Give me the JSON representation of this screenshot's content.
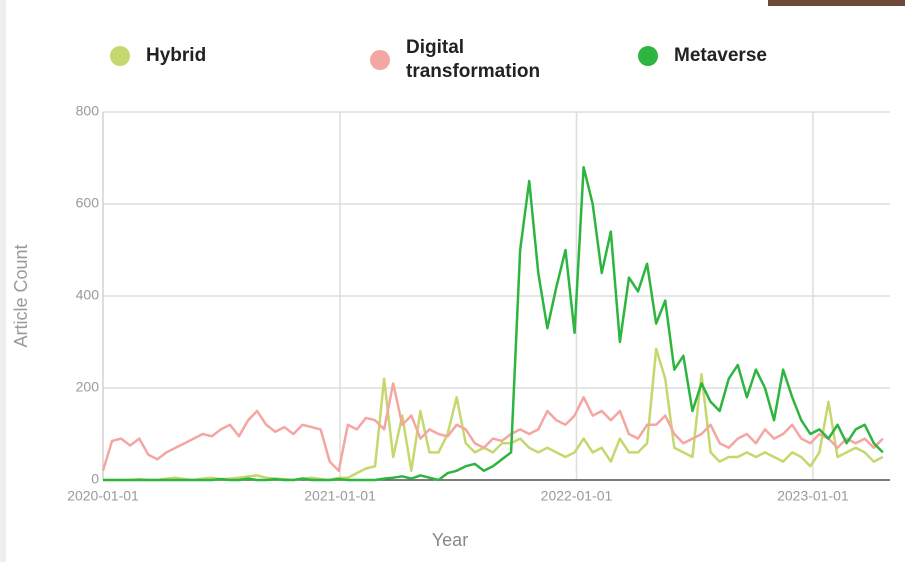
{
  "chart_data": {
    "type": "line",
    "x_label": "Year",
    "y_label": "Article Count",
    "x": [
      "2020-01-01",
      "2020-01-15",
      "2020-01-29",
      "2020-02-12",
      "2020-02-26",
      "2020-03-11",
      "2020-03-25",
      "2020-04-08",
      "2020-04-22",
      "2020-05-06",
      "2020-05-20",
      "2020-06-03",
      "2020-06-17",
      "2020-07-01",
      "2020-07-15",
      "2020-07-29",
      "2020-08-12",
      "2020-08-26",
      "2020-09-09",
      "2020-09-23",
      "2020-10-07",
      "2020-10-21",
      "2020-11-04",
      "2020-11-18",
      "2020-12-02",
      "2020-12-16",
      "2020-12-30",
      "2021-01-13",
      "2021-01-27",
      "2021-02-10",
      "2021-02-24",
      "2021-03-10",
      "2021-03-24",
      "2021-04-07",
      "2021-04-21",
      "2021-05-05",
      "2021-05-19",
      "2021-06-02",
      "2021-06-16",
      "2021-06-30",
      "2021-07-14",
      "2021-07-28",
      "2021-08-11",
      "2021-08-25",
      "2021-09-08",
      "2021-09-22",
      "2021-10-06",
      "2021-10-20",
      "2021-11-03",
      "2021-11-17",
      "2021-12-01",
      "2021-12-15",
      "2021-12-29",
      "2022-01-12",
      "2022-01-26",
      "2022-02-09",
      "2022-02-23",
      "2022-03-09",
      "2022-03-23",
      "2022-04-06",
      "2022-04-20",
      "2022-05-04",
      "2022-05-18",
      "2022-06-01",
      "2022-06-15",
      "2022-06-29",
      "2022-07-13",
      "2022-07-27",
      "2022-08-10",
      "2022-08-24",
      "2022-09-07",
      "2022-09-21",
      "2022-10-05",
      "2022-10-19",
      "2022-11-02",
      "2022-11-16",
      "2022-11-30",
      "2022-12-14",
      "2022-12-28",
      "2023-01-11",
      "2023-01-25",
      "2023-02-08",
      "2023-02-22",
      "2023-03-08",
      "2023-03-22",
      "2023-04-05",
      "2023-04-19"
    ],
    "series": [
      {
        "name": "Hybrid",
        "color": "#c5d86d",
        "values": [
          0,
          0,
          0,
          0,
          2,
          0,
          0,
          3,
          5,
          2,
          0,
          3,
          5,
          2,
          3,
          5,
          8,
          10,
          5,
          3,
          2,
          0,
          3,
          5,
          2,
          0,
          5,
          5,
          15,
          25,
          30,
          220,
          50,
          140,
          20,
          150,
          60,
          60,
          100,
          180,
          80,
          60,
          70,
          60,
          80,
          80,
          90,
          70,
          60,
          70,
          60,
          50,
          60,
          90,
          60,
          70,
          40,
          90,
          60,
          60,
          80,
          285,
          220,
          70,
          60,
          50,
          230,
          60,
          40,
          50,
          50,
          60,
          50,
          60,
          50,
          40,
          60,
          50,
          30,
          60,
          170,
          50,
          60,
          70,
          60,
          40,
          50
        ]
      },
      {
        "name": "Digital transformation",
        "color": "#f4a6a3",
        "values": [
          20,
          85,
          90,
          75,
          90,
          55,
          45,
          60,
          70,
          80,
          90,
          100,
          95,
          110,
          120,
          95,
          130,
          150,
          120,
          105,
          115,
          100,
          120,
          115,
          110,
          40,
          20,
          120,
          110,
          135,
          130,
          110,
          210,
          120,
          140,
          90,
          110,
          100,
          95,
          120,
          110,
          80,
          70,
          90,
          85,
          100,
          110,
          100,
          110,
          150,
          130,
          120,
          140,
          180,
          140,
          150,
          130,
          150,
          100,
          90,
          120,
          120,
          140,
          100,
          80,
          90,
          100,
          120,
          80,
          70,
          90,
          100,
          80,
          110,
          90,
          100,
          120,
          90,
          80,
          100,
          90,
          70,
          90,
          80,
          90,
          70,
          90
        ]
      },
      {
        "name": "Metaverse",
        "color": "#2db53f",
        "values": [
          0,
          0,
          0,
          0,
          0,
          0,
          0,
          0,
          0,
          0,
          0,
          0,
          0,
          2,
          0,
          0,
          3,
          0,
          0,
          2,
          0,
          0,
          3,
          0,
          0,
          0,
          2,
          0,
          0,
          0,
          0,
          3,
          5,
          8,
          3,
          10,
          5,
          0,
          15,
          20,
          30,
          35,
          20,
          30,
          45,
          60,
          500,
          650,
          450,
          330,
          420,
          500,
          320,
          680,
          600,
          450,
          540,
          300,
          440,
          410,
          470,
          340,
          390,
          240,
          270,
          150,
          210,
          170,
          150,
          220,
          250,
          180,
          240,
          200,
          130,
          240,
          180,
          130,
          100,
          110,
          90,
          120,
          80,
          110,
          120,
          80,
          60
        ]
      }
    ],
    "xlim": [
      "2020-01-01",
      "2023-04-30"
    ],
    "xticks": [
      "2020-01-01",
      "2021-01-01",
      "2022-01-01",
      "2023-01-01"
    ],
    "ylim": [
      0,
      800
    ],
    "yticks": [
      0,
      200,
      400,
      600,
      800
    ],
    "grid": true
  }
}
